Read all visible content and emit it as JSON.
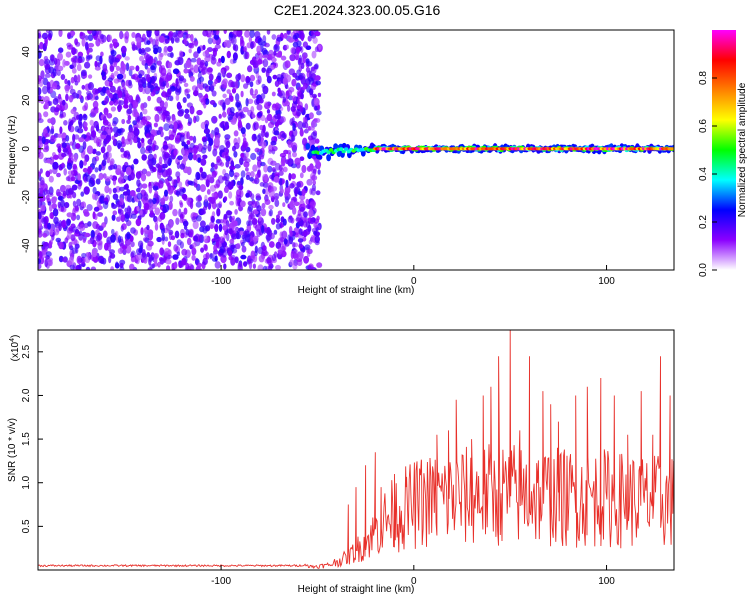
{
  "figure": {
    "title": "C2E1.2024.323.00.05.G16"
  },
  "chart_data": [
    {
      "type": "heatmap",
      "title": "C2E1.2024.323.00.05.G16",
      "xlabel": "Height of straight line (km)",
      "ylabel": "Frequency (Hz)",
      "xlim": [
        -195,
        135
      ],
      "ylim": [
        -50,
        49
      ],
      "xticks": [
        -100,
        0,
        100
      ],
      "yticks": [
        -40,
        -20,
        0,
        20,
        40
      ],
      "grid": false,
      "noise_region_x": [
        -195,
        -55
      ],
      "signal_line": {
        "frequency": 0,
        "onset_height": -55,
        "strong_from_height": -20
      },
      "colorbar": {
        "label": "Normalized spectral amplitude",
        "range": [
          0,
          1
        ],
        "ticks": [
          0.0,
          0.2,
          0.4,
          0.6,
          0.8
        ],
        "colors": [
          "#ffffff",
          "#8b00ff",
          "#0000ff",
          "#00ffff",
          "#00ff00",
          "#ffff00",
          "#ff8000",
          "#ff0000",
          "#ff00ff"
        ]
      }
    },
    {
      "type": "line",
      "xlabel": "Height of straight line (km)",
      "ylabel": "SNR (10 * v/v)",
      "y_multiplier_label": "(x10",
      "y_multiplier_exp": "4",
      "xlim": [
        -195,
        135
      ],
      "ylim": [
        0,
        2.75
      ],
      "xticks": [
        -100,
        0,
        100
      ],
      "yticks": [
        0.5,
        1.0,
        1.5,
        2.0,
        2.5
      ],
      "grid": false,
      "series": [
        {
          "color": "#e8302a",
          "profile": [
            [
              -195,
              0.05
            ],
            [
              -60,
              0.05
            ],
            [
              -45,
              0.08
            ],
            [
              -35,
              0.2
            ],
            [
              -28,
              0.35
            ],
            [
              -22,
              0.5
            ],
            [
              -15,
              0.7
            ],
            [
              -5,
              0.85
            ],
            [
              5,
              0.95
            ],
            [
              20,
              1.0
            ],
            [
              40,
              1.05
            ],
            [
              60,
              1.05
            ],
            [
              80,
              1.0
            ],
            [
              100,
              1.0
            ],
            [
              120,
              0.95
            ],
            [
              135,
              0.95
            ]
          ],
          "peaks": [
            [
              -34,
              0.75
            ],
            [
              -30,
              0.95
            ],
            [
              -25,
              1.2
            ],
            [
              -20,
              1.35
            ],
            [
              -17,
              0.95
            ],
            [
              -10,
              1.1
            ],
            [
              -4,
              0.95
            ],
            [
              4,
              1.25
            ],
            [
              12,
              1.55
            ],
            [
              18,
              1.6
            ],
            [
              22,
              1.95
            ],
            [
              30,
              1.5
            ],
            [
              36,
              2.0
            ],
            [
              40,
              2.1
            ],
            [
              44,
              2.45
            ],
            [
              50,
              2.75
            ],
            [
              55,
              1.6
            ],
            [
              60,
              2.45
            ],
            [
              67,
              2.05
            ],
            [
              71,
              1.9
            ],
            [
              75,
              1.7
            ],
            [
              84,
              2.0
            ],
            [
              90,
              2.1
            ],
            [
              97,
              2.2
            ],
            [
              104,
              2.0
            ],
            [
              111,
              1.55
            ],
            [
              118,
              2.05
            ],
            [
              124,
              1.55
            ],
            [
              128,
              2.45
            ],
            [
              133,
              2.0
            ]
          ]
        }
      ]
    }
  ]
}
